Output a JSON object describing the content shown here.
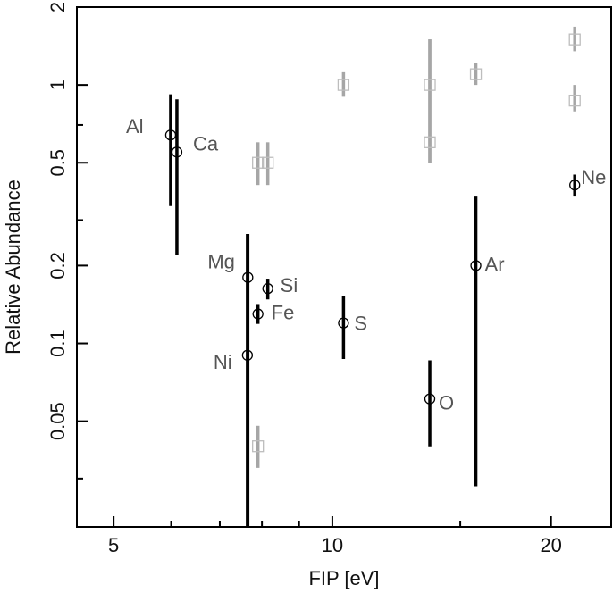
{
  "chart_data": {
    "type": "scatter",
    "title": "",
    "xlabel": "FIP [eV]",
    "ylabel": "Relative Abundance",
    "x_scale": "log",
    "y_scale": "log",
    "xlim": [
      4.45,
      24.2
    ],
    "ylim": [
      0.0195,
      2.0
    ],
    "grid": false,
    "x_ticks": [
      {
        "value": 5,
        "label": "5"
      },
      {
        "value": 10,
        "label": "10"
      },
      {
        "value": 20,
        "label": "20"
      }
    ],
    "x_minor_ticks": [
      6,
      7,
      8,
      9,
      15
    ],
    "y_ticks": [
      {
        "value": 2,
        "label": "2"
      },
      {
        "value": 1,
        "label": "1"
      },
      {
        "value": 0.5,
        "label": "0.5"
      },
      {
        "value": 0.2,
        "label": "0.2"
      },
      {
        "value": 0.1,
        "label": "0.1"
      },
      {
        "value": 0.05,
        "label": "0.05"
      }
    ],
    "y_minor_ticks": [
      0.7,
      0.3,
      0.03
    ],
    "colors": {
      "circle_series": "#000000",
      "square_series": "#a6a6a6",
      "label_text": "#555555"
    },
    "series": [
      {
        "marker": "circle",
        "points": [
          {
            "label": "Al",
            "x": 5.99,
            "y": 0.64,
            "ylo": 0.34,
            "yhi": 0.92
          },
          {
            "label": "Ca",
            "x": 6.11,
            "y": 0.55,
            "ylo": 0.22,
            "yhi": 0.88
          },
          {
            "label": "Mg",
            "x": 7.65,
            "y": 0.18,
            "ylo": 0.0195,
            "yhi": 0.265
          },
          {
            "label": "Si",
            "x": 8.15,
            "y": 0.163,
            "ylo": 0.148,
            "yhi": 0.178
          },
          {
            "label": "Fe",
            "x": 7.9,
            "y": 0.13,
            "ylo": 0.119,
            "yhi": 0.142
          },
          {
            "label": "Ni",
            "x": 7.64,
            "y": 0.09,
            "ylo": 0.0195,
            "yhi": 0.265
          },
          {
            "label": "S",
            "x": 10.36,
            "y": 0.12,
            "ylo": 0.087,
            "yhi": 0.152
          },
          {
            "label": "O",
            "x": 13.62,
            "y": 0.061,
            "ylo": 0.04,
            "yhi": 0.086
          },
          {
            "label": "Ar",
            "x": 15.76,
            "y": 0.2,
            "ylo": 0.028,
            "yhi": 0.37
          },
          {
            "label": "Ne",
            "x": 21.56,
            "y": 0.41,
            "ylo": 0.37,
            "yhi": 0.45
          }
        ]
      },
      {
        "marker": "square",
        "points": [
          {
            "x": 7.9,
            "y": 0.5,
            "ylo": 0.41,
            "yhi": 0.6
          },
          {
            "x": 8.15,
            "y": 0.5,
            "ylo": 0.41,
            "yhi": 0.6
          },
          {
            "x": 7.9,
            "y": 0.04,
            "ylo": 0.033,
            "yhi": 0.048
          },
          {
            "x": 10.36,
            "y": 1.0,
            "ylo": 0.9,
            "yhi": 1.12
          },
          {
            "x": 13.62,
            "y": 1.0,
            "ylo": 0.5,
            "yhi": 1.5
          },
          {
            "x": 13.62,
            "y": 0.6,
            "ylo": 0.5,
            "yhi": 1.5
          },
          {
            "x": 15.76,
            "y": 1.1,
            "ylo": 1.0,
            "yhi": 1.22
          },
          {
            "x": 21.56,
            "y": 1.5,
            "ylo": 1.35,
            "yhi": 1.68
          },
          {
            "x": 21.56,
            "y": 0.87,
            "ylo": 0.79,
            "yhi": 1.0
          }
        ]
      }
    ]
  }
}
